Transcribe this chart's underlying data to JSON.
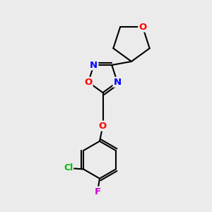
{
  "bg_color": "#ebebeb",
  "bond_color": "#000000",
  "bond_width": 1.5,
  "atom_colors": {
    "N": "#0000ff",
    "O": "#ff0000",
    "Cl": "#00bb00",
    "F": "#cc00cc",
    "C": "#000000"
  },
  "font_size": 9.5,
  "figsize": [
    3.0,
    3.0
  ],
  "dpi": 100
}
